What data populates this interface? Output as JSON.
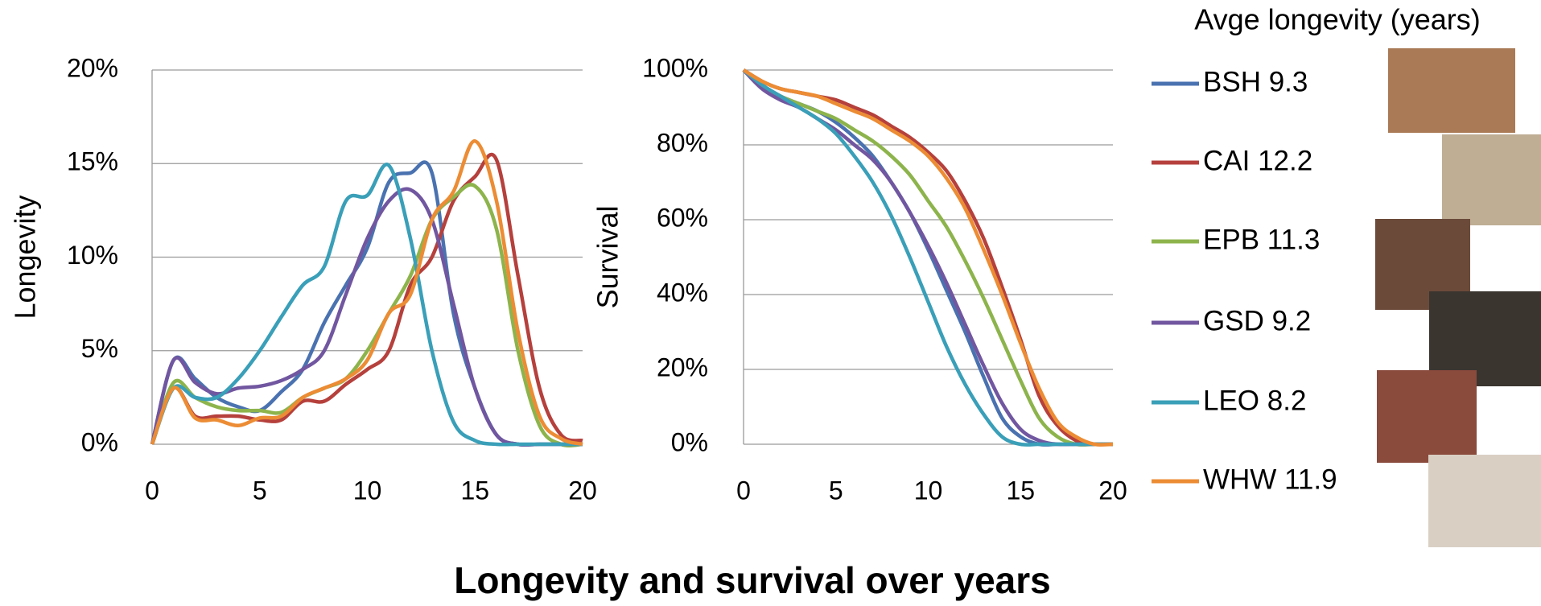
{
  "title": "Longevity and survival over years",
  "legend_title": "Avge longevity (years)",
  "chart_data": [
    {
      "type": "line",
      "ylabel": "Longevity",
      "x": [
        0,
        1,
        2,
        3,
        4,
        5,
        6,
        7,
        8,
        9,
        10,
        11,
        12,
        13,
        14,
        15,
        16,
        17,
        18,
        19,
        20
      ],
      "xlim": [
        0,
        20
      ],
      "xticks": [
        0,
        5,
        10,
        15,
        20
      ],
      "ylim": [
        0,
        20
      ],
      "yticks": [
        {
          "value": 0,
          "label": "0%"
        },
        {
          "value": 5,
          "label": "5%"
        },
        {
          "value": 10,
          "label": "10%"
        },
        {
          "value": 15,
          "label": "15%"
        },
        {
          "value": 20,
          "label": "20%"
        }
      ],
      "grid": true,
      "series": [
        {
          "name": "BSH 9.3",
          "color": "#4a72b0",
          "values": [
            0,
            4.5,
            3.5,
            2.5,
            2,
            1.8,
            2.8,
            4,
            6.5,
            8.5,
            10.5,
            14,
            14.5,
            14.5,
            7,
            3,
            0.5,
            0,
            0,
            0,
            0
          ]
        },
        {
          "name": "CAI 12.2",
          "color": "#b5403c",
          "values": [
            0,
            3,
            1.5,
            1.5,
            1.5,
            1.3,
            1.3,
            2.3,
            2.3,
            3.2,
            4,
            5,
            8.5,
            10,
            13,
            14.3,
            15.2,
            9,
            3,
            0.5,
            0.2
          ]
        },
        {
          "name": "EPB 11.3",
          "color": "#8db44c",
          "values": [
            0,
            3.3,
            2.5,
            2,
            1.8,
            1.8,
            1.7,
            2.5,
            3,
            3.5,
            5,
            7,
            9,
            12,
            13.2,
            13.8,
            11.5,
            5,
            1,
            0,
            0
          ]
        },
        {
          "name": "GSD 9.2",
          "color": "#7156a0",
          "values": [
            0,
            4.5,
            3.3,
            2.7,
            3,
            3.1,
            3.4,
            4,
            5,
            8,
            11,
            13,
            13.6,
            12,
            7.5,
            3,
            0.5,
            0,
            0,
            0,
            0
          ]
        },
        {
          "name": "LEO 8.2",
          "color": "#3a9fb8",
          "values": [
            0,
            3,
            2.5,
            2.5,
            3.5,
            5,
            6.8,
            8.5,
            9.5,
            13,
            13.3,
            14.9,
            11,
            5,
            1.2,
            0.2,
            0,
            0,
            0,
            0,
            0
          ]
        },
        {
          "name": "WHW 11.9",
          "color": "#ec8c34",
          "values": [
            0,
            3,
            1.4,
            1.3,
            1,
            1.4,
            1.5,
            2.5,
            3,
            3.5,
            4.5,
            7,
            8,
            12,
            13.5,
            16.2,
            13,
            6,
            1.5,
            0.3,
            0
          ]
        }
      ]
    },
    {
      "type": "line",
      "ylabel": "Survival",
      "x": [
        0,
        1,
        2,
        3,
        4,
        5,
        6,
        7,
        8,
        9,
        10,
        11,
        12,
        13,
        14,
        15,
        16,
        17,
        18,
        19,
        20
      ],
      "xlim": [
        0,
        20
      ],
      "xticks": [
        0,
        5,
        10,
        15,
        20
      ],
      "ylim": [
        0,
        100
      ],
      "yticks": [
        {
          "value": 0,
          "label": "0%"
        },
        {
          "value": 20,
          "label": "20%"
        },
        {
          "value": 40,
          "label": "40%"
        },
        {
          "value": 60,
          "label": "60%"
        },
        {
          "value": 80,
          "label": "80%"
        },
        {
          "value": 100,
          "label": "100%"
        }
      ],
      "grid": true,
      "series": [
        {
          "color": "#4a72b0",
          "values": [
            100,
            96,
            93,
            91,
            89,
            86,
            82,
            77,
            70,
            62,
            52,
            41,
            30,
            18,
            7,
            2,
            0,
            0,
            0,
            0,
            0
          ]
        },
        {
          "color": "#b5403c",
          "values": [
            100,
            97,
            95,
            94,
            93,
            92,
            90,
            88,
            85,
            82,
            78,
            73,
            65,
            55,
            42,
            28,
            13,
            5,
            1,
            0,
            0
          ]
        },
        {
          "color": "#8db44c",
          "values": [
            100,
            96,
            93,
            91,
            89,
            87,
            84,
            81,
            77,
            72,
            65,
            58,
            49,
            39,
            28,
            17,
            7,
            2,
            0,
            0,
            0
          ]
        },
        {
          "color": "#7156a0",
          "values": [
            100,
            95,
            92,
            90,
            87,
            84,
            80,
            76,
            70,
            62,
            53,
            43,
            32,
            21,
            11,
            4,
            1,
            0,
            0,
            0,
            0
          ]
        },
        {
          "color": "#3a9fb8",
          "values": [
            100,
            96,
            93,
            90,
            87,
            83,
            77,
            70,
            61,
            50,
            38,
            26,
            16,
            8,
            2,
            0,
            0,
            0,
            0,
            0,
            0
          ]
        },
        {
          "color": "#ec8c34",
          "values": [
            100,
            97,
            95,
            94,
            93,
            91,
            89,
            87,
            84,
            81,
            77,
            71,
            63,
            52,
            40,
            27,
            15,
            6,
            2,
            0,
            0
          ]
        }
      ]
    }
  ]
}
